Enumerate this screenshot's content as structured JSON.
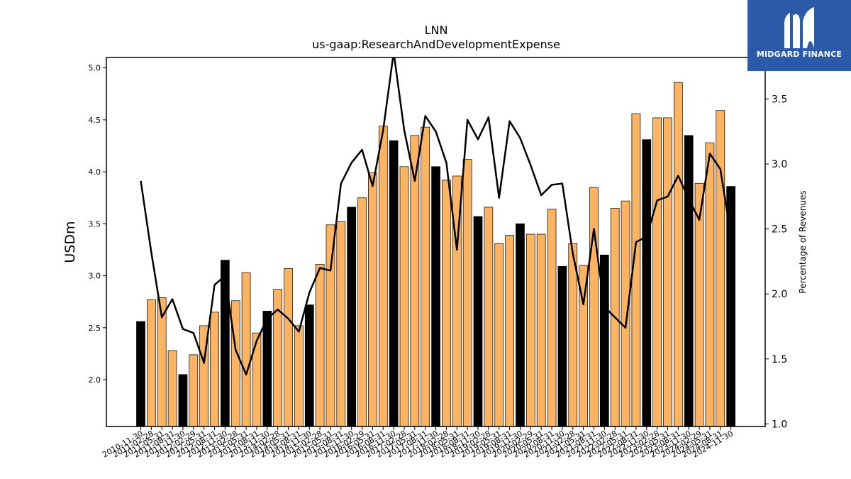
{
  "chart_data": {
    "type": "bar",
    "title": "LNN",
    "subtitle": "us-gaap:ResearchAndDevelopmentExpense",
    "ylabel": "USDm",
    "y2label": "Percentage of Revenues",
    "ylim": [
      1.55,
      5.1
    ],
    "y2lim": [
      0.98,
      3.82
    ],
    "yticks": [
      "2.0",
      "2.5",
      "3.0",
      "3.5",
      "4.0",
      "4.5",
      "5.0"
    ],
    "y2ticks": [
      "1.0",
      "1.5",
      "2.0",
      "2.5",
      "3.0",
      "3.5"
    ],
    "grid": false,
    "colors": {
      "quarter": "#fdb462",
      "fiscal_year": "#000000",
      "line": "#000000"
    },
    "categories": [
      "2010-11-30",
      "2011-02-28",
      "2011-05-31",
      "2011-08-31",
      "2011-11-30",
      "2012-02-29",
      "2012-05-31",
      "2012-08-31",
      "2012-11-30",
      "2013-02-28",
      "2013-05-31",
      "2013-08-31",
      "2013-11-30",
      "2014-02-28",
      "2014-05-31",
      "2014-08-31",
      "2014-11-30",
      "2015-02-28",
      "2015-05-31",
      "2015-08-31",
      "2015-11-30",
      "2016-02-29",
      "2016-05-31",
      "2016-08-31",
      "2016-11-30",
      "2017-02-28",
      "2017-05-31",
      "2017-08-31",
      "2017-11-30",
      "2018-02-28",
      "2018-05-31",
      "2018-08-31",
      "2018-11-30",
      "2019-02-28",
      "2019-05-31",
      "2019-08-31",
      "2019-11-30",
      "2020-02-29",
      "2020-05-31",
      "2020-08-31",
      "2020-11-30",
      "2021-02-28",
      "2021-05-31",
      "2021-08-31",
      "2021-11-30",
      "2022-02-28",
      "2022-05-31",
      "2022-08-31",
      "2022-11-30",
      "2023-02-28",
      "2023-05-31",
      "2023-08-31",
      "2023-11-30",
      "2024-02-29",
      "2024-05-31",
      "2024-08-31",
      "2024-11-30"
    ],
    "xtick_labels": [
      "2010-11-30",
      "2011-02-28",
      "2011-05-31",
      "2011-08-31",
      "2011-11-30",
      "2012-02-29",
      "2012-05-31",
      "2012-08-31",
      "2012-11-30",
      "2013-02-28",
      "2013-05-31",
      "2013-08-31",
      "2013-11-30",
      "2014-02-28",
      "2014-05-31",
      "2014-08-31",
      "2014-11-30",
      "2015-02-28",
      "2015-05-31",
      "2015-08-31",
      "2015-11-30",
      "2016-02-29",
      "2016-05-31",
      "2016-08-31",
      "2016-11-30",
      "2017-02-28",
      "2017-05-31",
      "2017-08-31",
      "2017-11-30",
      "2018-02-28",
      "2018-05-31",
      "2018-08-31",
      "2018-11-30",
      "2019-02-28",
      "2019-05-31",
      "2019-08-31",
      "2019-11-30",
      "2020-02-29",
      "2020-05-31",
      "2020-08-31",
      "2020-11-30",
      "2021-02-28",
      "2021-05-31",
      "2021-08-31",
      "2021-11-30",
      "2022-02-28",
      "2022-05-31",
      "2022-08-31",
      "2022-11-30",
      "2023-02-28",
      "2023-05-31",
      "2023-08-31",
      "2023-11-30",
      "2024-02-29",
      "2024-05-31",
      "2024-08-31",
      "2024-11-30"
    ],
    "values": [
      2.56,
      2.77,
      2.79,
      2.28,
      2.05,
      2.24,
      2.52,
      2.65,
      3.15,
      2.76,
      3.03,
      2.45,
      2.66,
      2.87,
      3.07,
      2.52,
      2.72,
      3.11,
      3.49,
      3.52,
      3.66,
      3.75,
      3.99,
      4.44,
      4.3,
      4.05,
      4.35,
      4.43,
      4.05,
      3.92,
      3.96,
      4.12,
      3.57,
      3.66,
      3.31,
      3.39,
      3.5,
      3.4,
      3.4,
      3.64,
      3.09,
      3.31,
      3.1,
      3.85,
      3.2,
      3.65,
      3.72,
      4.56,
      4.31,
      4.52,
      4.52,
      4.86,
      4.35,
      3.89,
      4.28,
      4.59,
      3.86
    ],
    "fiscal_year_end": [
      true,
      false,
      false,
      false,
      true,
      false,
      false,
      false,
      true,
      false,
      false,
      false,
      true,
      false,
      false,
      false,
      true,
      false,
      false,
      false,
      true,
      false,
      false,
      false,
      true,
      false,
      false,
      false,
      true,
      false,
      false,
      false,
      true,
      false,
      false,
      false,
      true,
      false,
      false,
      false,
      true,
      false,
      false,
      false,
      true,
      false,
      false,
      false,
      true,
      false,
      false,
      false,
      true,
      false,
      false,
      false,
      true
    ],
    "line_values": [
      2.87,
      2.32,
      1.82,
      1.96,
      1.73,
      1.7,
      1.47,
      2.07,
      2.14,
      1.57,
      1.38,
      1.64,
      1.81,
      1.88,
      1.81,
      1.71,
      2.01,
      2.2,
      2.18,
      2.85,
      3.01,
      3.11,
      2.83,
      3.26,
      3.86,
      3.26,
      2.87,
      3.37,
      3.25,
      3.01,
      2.34,
      3.34,
      3.19,
      3.36,
      2.74,
      3.33,
      3.2,
      2.99,
      2.76,
      2.84,
      2.85,
      2.31,
      1.92,
      2.5,
      1.9,
      1.82,
      1.74,
      2.4,
      2.44,
      2.72,
      2.75,
      2.91,
      2.73,
      2.57,
      3.08,
      2.96,
      2.45
    ]
  },
  "brand": {
    "name": "MIDGARD FINANCE",
    "color": "#2b5aa8"
  }
}
